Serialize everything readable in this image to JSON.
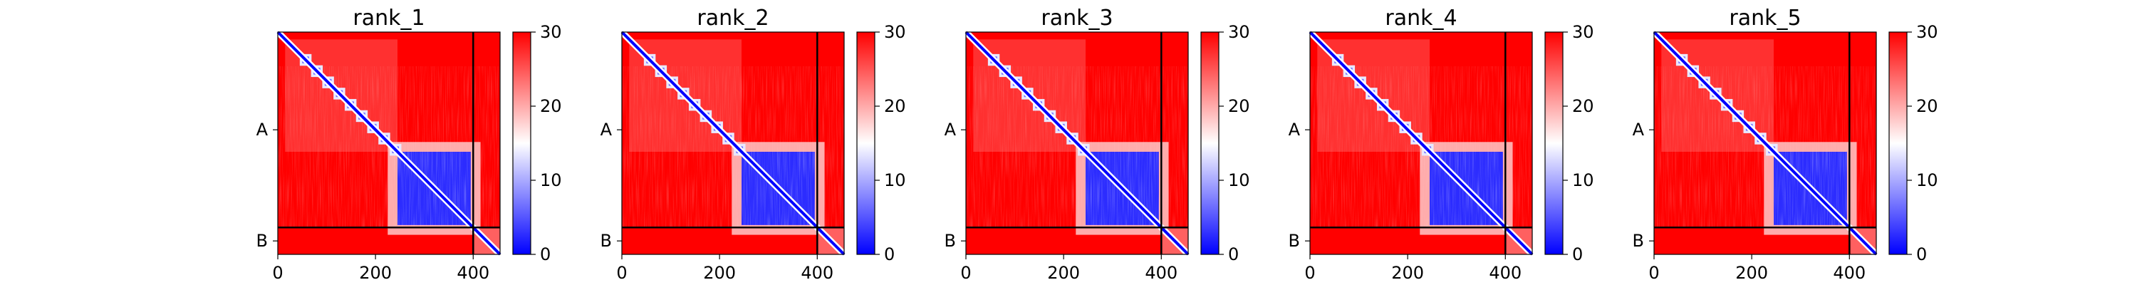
{
  "colors": {
    "low": "#0000ff",
    "mid": "#ffffff",
    "high": "#ff0000",
    "frame": "#000000"
  },
  "chart_data": [
    {
      "type": "heatmap",
      "title": "rank_1",
      "x_ticks": [
        0,
        200,
        400
      ],
      "y_tick_labels": [
        "A",
        "B"
      ],
      "chain_boundary": 400,
      "matrix_size": 455,
      "color_range": [
        0,
        30
      ],
      "colorbar_ticks": [
        0,
        10,
        20,
        30
      ],
      "colormap": "bwr",
      "blocks": [
        {
          "start": 245,
          "end": 395
        }
      ]
    },
    {
      "type": "heatmap",
      "title": "rank_2",
      "x_ticks": [
        0,
        200,
        400
      ],
      "y_tick_labels": [
        "A",
        "B"
      ],
      "chain_boundary": 400,
      "matrix_size": 455,
      "color_range": [
        0,
        30
      ],
      "colorbar_ticks": [
        0,
        10,
        20,
        30
      ],
      "colormap": "bwr",
      "blocks": [
        {
          "start": 245,
          "end": 395
        }
      ]
    },
    {
      "type": "heatmap",
      "title": "rank_3",
      "x_ticks": [
        0,
        200,
        400
      ],
      "y_tick_labels": [
        "A",
        "B"
      ],
      "chain_boundary": 400,
      "matrix_size": 455,
      "color_range": [
        0,
        30
      ],
      "colorbar_ticks": [
        0,
        10,
        20,
        30
      ],
      "colormap": "bwr",
      "blocks": [
        {
          "start": 245,
          "end": 395
        }
      ]
    },
    {
      "type": "heatmap",
      "title": "rank_4",
      "x_ticks": [
        0,
        200,
        400
      ],
      "y_tick_labels": [
        "A",
        "B"
      ],
      "chain_boundary": 400,
      "matrix_size": 455,
      "color_range": [
        0,
        30
      ],
      "colorbar_ticks": [
        0,
        10,
        20,
        30
      ],
      "colormap": "bwr",
      "blocks": [
        {
          "start": 245,
          "end": 395
        }
      ]
    },
    {
      "type": "heatmap",
      "title": "rank_5",
      "x_ticks": [
        0,
        200,
        400
      ],
      "y_tick_labels": [
        "A",
        "B"
      ],
      "chain_boundary": 400,
      "matrix_size": 455,
      "color_range": [
        0,
        30
      ],
      "colorbar_ticks": [
        0,
        10,
        20,
        30
      ],
      "colormap": "bwr",
      "blocks": [
        {
          "start": 245,
          "end": 395
        }
      ]
    }
  ]
}
